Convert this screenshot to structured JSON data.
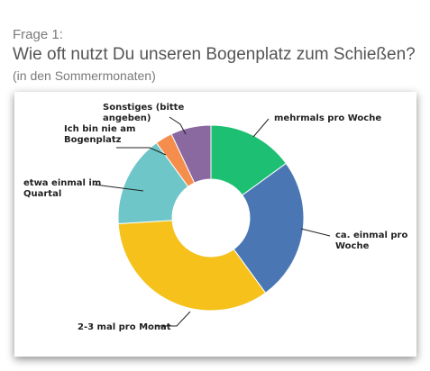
{
  "header": {
    "frage": "Frage 1:",
    "question": "Wie oft nutzt Du unseren Bogenplatz zum Schießen?",
    "sub": "(in den Sommermonaten)"
  },
  "chart_data": {
    "type": "pie",
    "donut": true,
    "categories": [
      "mehrmals pro Woche",
      "ca. einmal pro Woche",
      "2-3 mal pro Monat",
      "etwa einmal im Quartal",
      "Ich bin nie am Bogenplatz",
      "Sonstiges (bitte angeben)"
    ],
    "values": [
      15,
      25,
      34,
      16,
      3,
      7
    ],
    "colors": [
      "#1dbf73",
      "#4a77b4",
      "#f5c11a",
      "#6ec6c8",
      "#f58d4d",
      "#8a68a0"
    ],
    "label_lines": [
      [
        "mehrmals pro Woche"
      ],
      [
        "ca. einmal pro",
        "Woche"
      ],
      [
        "2-3 mal pro Monat"
      ],
      [
        "etwa einmal im",
        "Quartal"
      ],
      [
        "Ich bin nie am",
        "Bogenplatz"
      ],
      [
        "Sonstiges (bitte",
        "angeben)"
      ]
    ]
  }
}
